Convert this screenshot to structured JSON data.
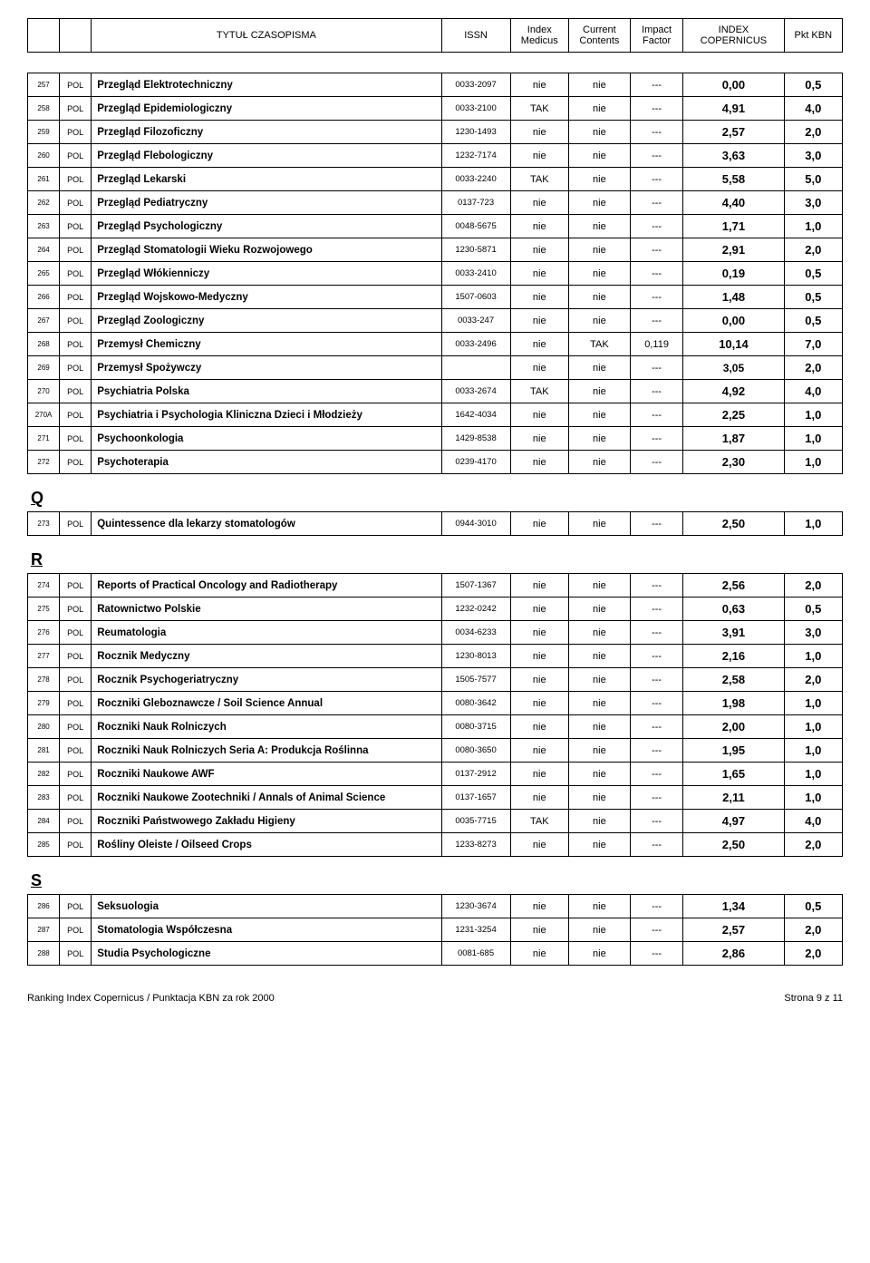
{
  "header": {
    "title": "TYTUŁ CZASOPISMA",
    "issn": "ISSN",
    "index_medicus": "Index Medicus",
    "current_contents": "Current Contents",
    "impact_factor": "Impact Factor",
    "index_copernicus": "INDEX COPERNICUS",
    "pkt_kbn": "Pkt KBN"
  },
  "rows_main": [
    {
      "n": "257",
      "c": "POL",
      "t": "Przegląd Elektrotechniczny",
      "issn": "0033-2097",
      "im": "nie",
      "cc": "nie",
      "if": "---",
      "ic": "0,00",
      "kbn": "0,5"
    },
    {
      "n": "258",
      "c": "POL",
      "t": "Przegląd Epidemiologiczny",
      "issn": "0033-2100",
      "im": "TAK",
      "cc": "nie",
      "if": "---",
      "ic": "4,91",
      "kbn": "4,0"
    },
    {
      "n": "259",
      "c": "POL",
      "t": "Przegląd Filozoficzny",
      "issn": "1230-1493",
      "im": "nie",
      "cc": "nie",
      "if": "---",
      "ic": "2,57",
      "kbn": "2,0"
    },
    {
      "n": "260",
      "c": "POL",
      "t": "Przegląd Flebologiczny",
      "issn": "1232-7174",
      "im": "nie",
      "cc": "nie",
      "if": "---",
      "ic": "3,63",
      "kbn": "3,0"
    },
    {
      "n": "261",
      "c": "POL",
      "t": "Przegląd Lekarski",
      "issn": "0033-2240",
      "im": "TAK",
      "cc": "nie",
      "if": "---",
      "ic": "5,58",
      "kbn": "5,0"
    },
    {
      "n": "262",
      "c": "POL",
      "t": "Przegląd Pediatryczny",
      "issn": "0137-723",
      "im": "nie",
      "cc": "nie",
      "if": "---",
      "ic": "4,40",
      "kbn": "3,0"
    },
    {
      "n": "263",
      "c": "POL",
      "t": "Przegląd Psychologiczny",
      "issn": "0048-5675",
      "im": "nie",
      "cc": "nie",
      "if": "---",
      "ic": "1,71",
      "kbn": "1,0"
    },
    {
      "n": "264",
      "c": "POL",
      "t": "Przegląd Stomatologii Wieku Rozwojowego",
      "issn": "1230-5871",
      "im": "nie",
      "cc": "nie",
      "if": "---",
      "ic": "2,91",
      "kbn": "2,0"
    },
    {
      "n": "265",
      "c": "POL",
      "t": "Przegląd Włókienniczy",
      "issn": "0033-2410",
      "im": "nie",
      "cc": "nie",
      "if": "---",
      "ic": "0,19",
      "kbn": "0,5"
    },
    {
      "n": "266",
      "c": "POL",
      "t": "Przegląd Wojskowo-Medyczny",
      "issn": "1507-0603",
      "im": "nie",
      "cc": "nie",
      "if": "---",
      "ic": "1,48",
      "kbn": "0,5"
    },
    {
      "n": "267",
      "c": "POL",
      "t": "Przegląd Zoologiczny",
      "issn": "0033-247",
      "im": "nie",
      "cc": "nie",
      "if": "---",
      "ic": "0,00",
      "kbn": "0,5"
    },
    {
      "n": "268",
      "c": "POL",
      "t": "Przemysł Chemiczny",
      "issn": "0033-2496",
      "im": "nie",
      "cc": "TAK",
      "if": "0,119",
      "ic": "10,14",
      "kbn": "7,0"
    },
    {
      "n": "269",
      "c": "POL",
      "t": "Przemysł Spożywczy",
      "issn": "",
      "im": "nie",
      "cc": "nie",
      "if": "---",
      "ic": "3,05",
      "kbn": "2,0",
      "kbn_blank": true
    },
    {
      "n": "270",
      "c": "POL",
      "t": "Psychiatria Polska",
      "issn": "0033-2674",
      "im": "TAK",
      "cc": "nie",
      "if": "---",
      "ic": "4,92",
      "kbn": "4,0"
    },
    {
      "n": "270A",
      "c": "POL",
      "t": "Psychiatria i Psychologia Kliniczna Dzieci i Młodzieży",
      "issn": "1642-4034",
      "im": "nie",
      "cc": "nie",
      "if": "---",
      "ic": "2,25",
      "kbn": "1,0"
    },
    {
      "n": "271",
      "c": "POL",
      "t": "Psychoonkologia",
      "issn": "1429-8538",
      "im": "nie",
      "cc": "nie",
      "if": "---",
      "ic": "1,87",
      "kbn": "1,0"
    },
    {
      "n": "272",
      "c": "POL",
      "t": "Psychoterapia",
      "issn": "0239-4170",
      "im": "nie",
      "cc": "nie",
      "if": "---",
      "ic": "2,30",
      "kbn": "1,0"
    }
  ],
  "section_q": "Q",
  "rows_q": [
    {
      "n": "273",
      "c": "POL",
      "t": "Quintessence dla lekarzy stomatologów",
      "issn": "0944-3010",
      "im": "nie",
      "cc": "nie",
      "if": "---",
      "ic": "2,50",
      "kbn": "1,0"
    }
  ],
  "section_r": "R",
  "rows_r": [
    {
      "n": "274",
      "c": "POL",
      "t": "Reports of Practical Oncology and Radiotherapy",
      "issn": "1507-1367",
      "im": "nie",
      "cc": "nie",
      "if": "---",
      "ic": "2,56",
      "kbn": "2,0"
    },
    {
      "n": "275",
      "c": "POL",
      "t": "Ratownictwo Polskie",
      "issn": "1232-0242",
      "im": "nie",
      "cc": "nie",
      "if": "---",
      "ic": "0,63",
      "kbn": "0,5"
    },
    {
      "n": "276",
      "c": "POL",
      "t": "Reumatologia",
      "issn": "0034-6233",
      "im": "nie",
      "cc": "nie",
      "if": "---",
      "ic": "3,91",
      "kbn": "3,0"
    },
    {
      "n": "277",
      "c": "POL",
      "t": "Rocznik Medyczny",
      "issn": "1230-8013",
      "im": "nie",
      "cc": "nie",
      "if": "---",
      "ic": "2,16",
      "kbn": "1,0"
    },
    {
      "n": "278",
      "c": "POL",
      "t": "Rocznik Psychogeriatryczny",
      "issn": "1505-7577",
      "im": "nie",
      "cc": "nie",
      "if": "---",
      "ic": "2,58",
      "kbn": "2,0"
    },
    {
      "n": "279",
      "c": "POL",
      "t": "Roczniki Gleboznawcze / Soil Science Annual",
      "issn": "0080-3642",
      "im": "nie",
      "cc": "nie",
      "if": "---",
      "ic": "1,98",
      "kbn": "1,0"
    },
    {
      "n": "280",
      "c": "POL",
      "t": "Roczniki Nauk Rolniczych",
      "issn": "0080-3715",
      "im": "nie",
      "cc": "nie",
      "if": "---",
      "ic": "2,00",
      "kbn": "1,0"
    },
    {
      "n": "281",
      "c": "POL",
      "t": "Roczniki Nauk Rolniczych Seria A: Produkcja Roślinna",
      "issn": "0080-3650",
      "im": "nie",
      "cc": "nie",
      "if": "---",
      "ic": "1,95",
      "kbn": "1,0"
    },
    {
      "n": "282",
      "c": "POL",
      "t": "Roczniki Naukowe AWF",
      "issn": "0137-2912",
      "im": "nie",
      "cc": "nie",
      "if": "---",
      "ic": "1,65",
      "kbn": "1,0"
    },
    {
      "n": "283",
      "c": "POL",
      "t": "Roczniki Naukowe Zootechniki / Annals of Animal Science",
      "issn": "0137-1657",
      "im": "nie",
      "cc": "nie",
      "if": "---",
      "ic": "2,11",
      "kbn": "1,0"
    },
    {
      "n": "284",
      "c": "POL",
      "t": "Roczniki Państwowego Zakładu Higieny",
      "issn": "0035-7715",
      "im": "TAK",
      "cc": "nie",
      "if": "---",
      "ic": "4,97",
      "kbn": "4,0"
    },
    {
      "n": "285",
      "c": "POL",
      "t": "Rośliny Oleiste / Oilseed Crops",
      "issn": "1233-8273",
      "im": "nie",
      "cc": "nie",
      "if": "---",
      "ic": "2,50",
      "kbn": "2,0"
    }
  ],
  "section_s": "S",
  "rows_s": [
    {
      "n": "286",
      "c": "POL",
      "t": "Seksuologia",
      "issn": "1230-3674",
      "im": "nie",
      "cc": "nie",
      "if": "---",
      "ic": "1,34",
      "kbn": "0,5"
    },
    {
      "n": "287",
      "c": "POL",
      "t": "Stomatologia Współczesna",
      "issn": "1231-3254",
      "im": "nie",
      "cc": "nie",
      "if": "---",
      "ic": "2,57",
      "kbn": "2,0"
    },
    {
      "n": "288",
      "c": "POL",
      "t": "Studia Psychologiczne",
      "issn": "0081-685",
      "im": "nie",
      "cc": "nie",
      "if": "---",
      "ic": "2,86",
      "kbn": "2,0"
    }
  ],
  "footer": {
    "left": "Ranking Index Copernicus / Punktacja KBN za rok 2000",
    "right": "Strona 9 z 11"
  }
}
